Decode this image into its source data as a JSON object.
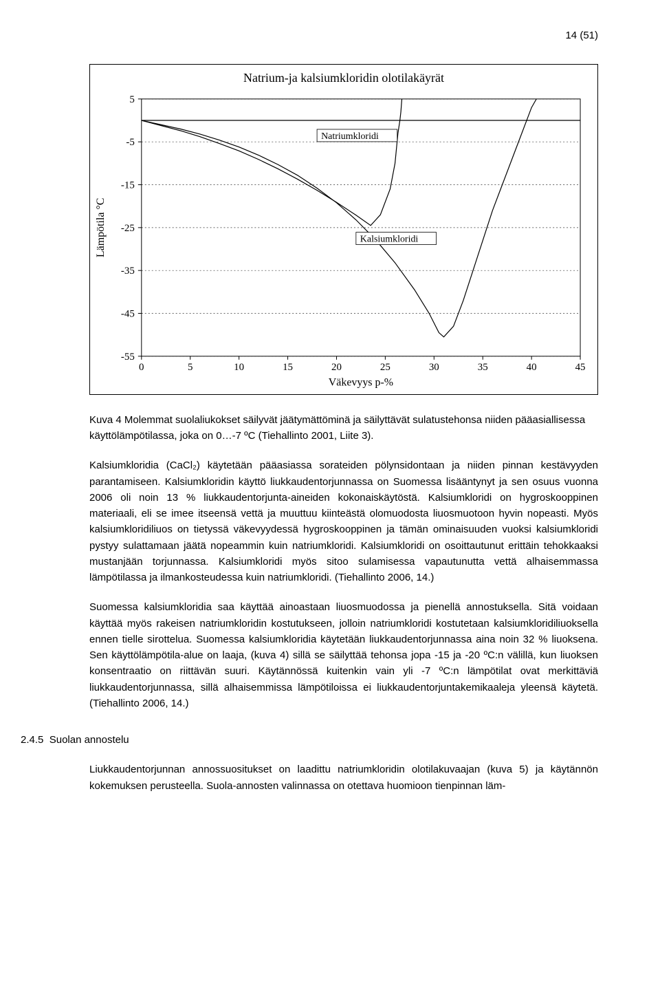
{
  "header": {
    "page_num": "14 (51)"
  },
  "figure": {
    "caption": "Kuva 4 Molemmat suolaliukokset säilyvät jäätymättöminä ja säilyttävät sulatustehonsa niiden pääasiallisessa käyttölämpötilassa, joka on 0…-7 ºC (Tiehallinto 2001, Liite 3).",
    "chart": {
      "type": "line",
      "title": "Natrium-ja kalsiumkloridin olotilakäyrät",
      "xlabel": "Väkevyys p-%",
      "ylabel": "Lämpötila °C",
      "xlim": [
        0,
        45
      ],
      "ylim": [
        -55,
        5
      ],
      "xtick_step": 5,
      "yticks": [
        5,
        -5,
        -15,
        -25,
        -35,
        -45,
        -55
      ],
      "grid_color": "#333333",
      "axis_color": "#000000",
      "background_color": "#ffffff",
      "line_width": 1.2,
      "ref_line_y": 0,
      "series": [
        {
          "name": "Natriumkloridi",
          "label": "Natriumkloridi",
          "label_box_x": 18,
          "label_box_y": -4,
          "points": [
            [
              0,
              0
            ],
            [
              2,
              -1.2
            ],
            [
              4,
              -2.4
            ],
            [
              6,
              -3.8
            ],
            [
              8,
              -5.4
            ],
            [
              10,
              -7.1
            ],
            [
              12,
              -9.1
            ],
            [
              14,
              -11.3
            ],
            [
              16,
              -13.7
            ],
            [
              18,
              -16.3
            ],
            [
              20,
              -19.1
            ],
            [
              22,
              -22.1
            ],
            [
              23.5,
              -24.5
            ],
            [
              24.5,
              -22
            ],
            [
              25.5,
              -16
            ],
            [
              26,
              -10
            ],
            [
              26.3,
              -3
            ],
            [
              26.5,
              0
            ],
            [
              26.6,
              2
            ],
            [
              26.7,
              5
            ]
          ]
        },
        {
          "name": "Kalsiumkloridi",
          "label": "Kalsiumkloridi",
          "label_box_x": 22,
          "label_box_y": -28,
          "points": [
            [
              0,
              0
            ],
            [
              2,
              -1.0
            ],
            [
              4,
              -2.0
            ],
            [
              6,
              -3.2
            ],
            [
              8,
              -4.6
            ],
            [
              10,
              -6.2
            ],
            [
              12,
              -8.1
            ],
            [
              14,
              -10.3
            ],
            [
              16,
              -12.8
            ],
            [
              18,
              -15.8
            ],
            [
              20,
              -19.2
            ],
            [
              22,
              -23.2
            ],
            [
              24,
              -27.8
            ],
            [
              26,
              -33.2
            ],
            [
              28,
              -39.5
            ],
            [
              29.5,
              -45
            ],
            [
              30.5,
              -49.5
            ],
            [
              31,
              -50.5
            ],
            [
              32,
              -48
            ],
            [
              33,
              -42
            ],
            [
              34,
              -35
            ],
            [
              35,
              -28
            ],
            [
              36,
              -21
            ],
            [
              37,
              -15
            ],
            [
              38,
              -9
            ],
            [
              39,
              -3
            ],
            [
              39.5,
              0
            ],
            [
              40,
              3
            ],
            [
              40.5,
              5
            ]
          ]
        }
      ]
    }
  },
  "body": {
    "p1": "Kalsiumkloridia (CaCl₂) käytetään pääasiassa sorateiden pölynsidontaan ja niiden pinnan kestävyyden parantamiseen. Kalsiumkloridin käyttö liukkaudentorjunnassa on Suomessa lisääntynyt ja sen osuus vuonna 2006 oli noin 13 % liukkaudentorjunta-aineiden kokonaiskäytöstä. Kalsiumkloridi on hygroskooppinen materiaali, eli se imee itseensä vettä ja muuttuu kiinteästä olomuodosta liuosmuotoon hyvin nopeasti. Myös kalsiumkloridiliuos on tietyssä väkevyydessä hygroskooppinen ja tämän ominaisuuden vuoksi kalsiumkloridi pystyy sulattamaan jäätä nopeammin kuin natriumkloridi. Kalsiumkloridi on osoittautunut erittäin tehokkaaksi mustanjään torjunnassa. Kalsiumkloridi myös sitoo sulamisessa vapautunutta vettä alhaisemmassa lämpötilassa ja ilmankosteudessa kuin natriumkloridi. (Tiehallinto 2006, 14.)",
    "p2": "Suomessa kalsiumkloridia saa käyttää ainoastaan liuosmuodossa ja pienellä annostuksella. Sitä voidaan käyttää myös rakeisen natriumkloridin kostutukseen, jolloin natriumkloridi kostutetaan kalsiumkloridiliuoksella ennen tielle sirottelua. Suomessa kalsiumkloridia käytetään liukkaudentorjunnassa aina noin 32 % liuoksena. Sen käyttölämpötila-alue on laaja, (kuva 4) sillä se säilyttää tehonsa jopa -15 ja -20 ºC:n välillä, kun liuoksen konsentraatio on riittävän suuri. Käytännössä kuitenkin vain yli -7 ºC:n lämpötilat ovat merkittäviä liukkaudentorjunnassa, sillä alhaisemmissa lämpötiloissa ei liukkaudentorjuntakemikaaleja yleensä käytetä. (Tiehallinto 2006, 14.)"
  },
  "section": {
    "number": "2.4.5",
    "title": "Suolan annostelu"
  },
  "body2": {
    "p3": "Liukkaudentorjunnan annossuositukset on laadittu natriumkloridin olotilakuvaajan (kuva 5) ja käytännön kokemuksen perusteella. Suola-annosten valinnassa on otettava huomioon tienpinnan läm-"
  }
}
